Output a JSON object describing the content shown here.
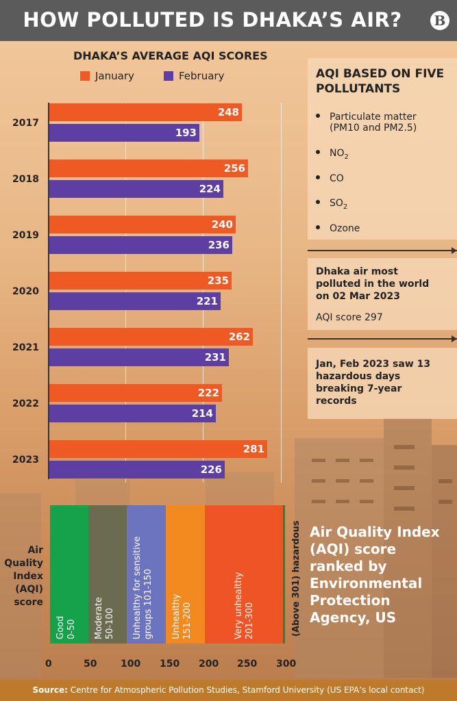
{
  "header": {
    "title": "HOW POLLUTED IS DHAKA’S AIR?",
    "logo": "B"
  },
  "chart_data": {
    "type": "bar",
    "orientation": "horizontal",
    "title": "DHAKA’S AVERAGE AQI SCORES",
    "categories": [
      "2017",
      "2018",
      "2019",
      "2020",
      "2021",
      "2022",
      "2023"
    ],
    "series": [
      {
        "name": "January",
        "color": "#ef5a24",
        "values": [
          248,
          256,
          240,
          235,
          262,
          222,
          281
        ]
      },
      {
        "name": "February",
        "color": "#5d3ea3",
        "values": [
          193,
          224,
          236,
          221,
          231,
          214,
          226
        ]
      }
    ],
    "xlim": [
      0,
      300
    ],
    "x_ticks": [
      "0",
      "50",
      "100",
      "150",
      "200",
      "250",
      "300"
    ]
  },
  "pollutants": {
    "title": "AQI BASED ON FIVE POLLUTANTS",
    "items": [
      {
        "label": "Particulate matter (PM10 and PM2.5)",
        "main": "Particulate matter",
        "sub_line": "(PM10 and PM2.5)"
      },
      {
        "main": "NO",
        "sub": "2"
      },
      {
        "main": "CO"
      },
      {
        "main": "SO",
        "sub": "2"
      },
      {
        "main": "Ozone"
      }
    ]
  },
  "notes": {
    "most_polluted_title": "Dhaka air most polluted in the world on 02 Mar 2023",
    "most_polluted_lines": [
      "Dhaka air most",
      "polluted in the world",
      "on 02 Mar 2023"
    ],
    "aqi_score": "AQI score 297",
    "hazard_lines": [
      "Jan, Feb 2023 saw 13",
      "hazardous days",
      "breaking 7-year",
      "records"
    ]
  },
  "aqi_scale": {
    "label_lines": [
      "Air",
      "Quality",
      "Index",
      "(AQI)",
      "score"
    ],
    "bands": [
      {
        "lines": [
          "Good",
          "0-50"
        ],
        "color": "#16a14b",
        "from": 0,
        "to": 50
      },
      {
        "lines": [
          "Moderate",
          "50-100"
        ],
        "color": "#6b6b4f",
        "from": 50,
        "to": 100
      },
      {
        "lines": [
          "Unhealthy for sensitive",
          "groups 101-150"
        ],
        "color": "#6c74c0",
        "from": 100,
        "to": 150
      },
      {
        "lines": [
          "Unhealthy",
          "151-200"
        ],
        "color": "#f28a1f",
        "from": 150,
        "to": 200
      },
      {
        "lines": [
          "Very unhealthy",
          "201-300"
        ],
        "color": "#ef5424",
        "from": 200,
        "to": 300
      }
    ],
    "hazardous": "(Above 301) hazardous",
    "hazardous_color": "#1a8a3e",
    "ticks": [
      "0",
      "50",
      "100",
      "150",
      "200",
      "250",
      "300"
    ],
    "ranking_note_lines": [
      "Air Quality Index",
      "(AQI) score",
      "ranked by",
      "Environmental",
      "Protection",
      "Agency, US"
    ]
  },
  "footer": {
    "source_label": "Source:",
    "source_text": "Centre for Atmospheric Pollution Studies, Stamford University (US EPA’s local contact)"
  }
}
